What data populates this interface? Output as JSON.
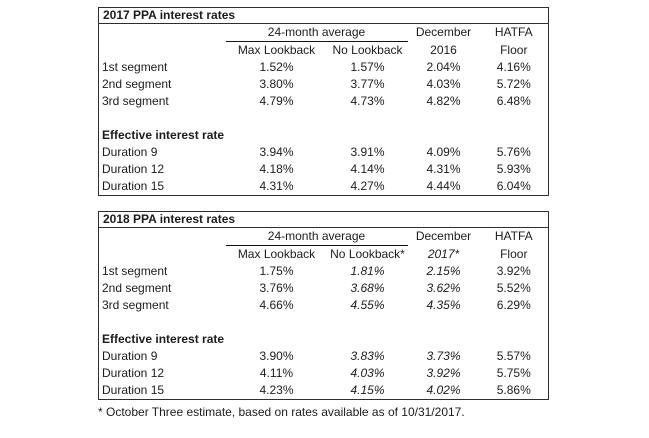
{
  "colors": {
    "background": "#ffffff",
    "text": "#1c1c1c",
    "border": "#2e2e2e"
  },
  "footnote": "* October Three estimate, based on rates available as of 10/31/2017.",
  "tables": [
    {
      "title": "2017 PPA interest rates",
      "group_header": "24-month average",
      "subheaders": [
        "Max Lookback",
        "No Lookback"
      ],
      "period_header_line1": "December",
      "period_header_line2": "2016",
      "floor_header_line1": "HATFA",
      "floor_header_line2": "Floor",
      "italic_value_columns": [],
      "section2_header": "Effective interest rate",
      "rows_segments": [
        {
          "label": "1st segment",
          "values": [
            "1.52%",
            "1.57%",
            "2.04%",
            "4.16%"
          ]
        },
        {
          "label": "2nd segment",
          "values": [
            "3.80%",
            "3.77%",
            "4.03%",
            "5.72%"
          ]
        },
        {
          "label": "3rd segment",
          "values": [
            "4.79%",
            "4.73%",
            "4.82%",
            "6.48%"
          ]
        }
      ],
      "rows_durations": [
        {
          "label": "Duration 9",
          "values": [
            "3.94%",
            "3.91%",
            "4.09%",
            "5.76%"
          ]
        },
        {
          "label": "Duration 12",
          "values": [
            "4.18%",
            "4.14%",
            "4.31%",
            "5.93%"
          ]
        },
        {
          "label": "Duration 15",
          "values": [
            "4.31%",
            "4.27%",
            "4.44%",
            "6.04%"
          ]
        }
      ]
    },
    {
      "title": "2018 PPA interest rates",
      "group_header": "24-month average",
      "subheaders": [
        "Max Lookback",
        "No Lookback*"
      ],
      "period_header_line1": "December",
      "period_header_line2": "2017*",
      "floor_header_line1": "HATFA",
      "floor_header_line2": "Floor",
      "italic_value_columns": [
        1,
        2
      ],
      "section2_header": "Effective interest rate",
      "rows_segments": [
        {
          "label": "1st segment",
          "values": [
            "1.75%",
            "1.81%",
            "2.15%",
            "3.92%"
          ]
        },
        {
          "label": "2nd segment",
          "values": [
            "3.76%",
            "3.68%",
            "3.62%",
            "5.52%"
          ]
        },
        {
          "label": "3rd segment",
          "values": [
            "4.66%",
            "4.55%",
            "4.35%",
            "6.29%"
          ]
        }
      ],
      "rows_durations": [
        {
          "label": "Duration 9",
          "values": [
            "3.90%",
            "3.83%",
            "3.73%",
            "5.57%"
          ]
        },
        {
          "label": "Duration 12",
          "values": [
            "4.11%",
            "4.03%",
            "3.92%",
            "5.75%"
          ]
        },
        {
          "label": "Duration 15",
          "values": [
            "4.23%",
            "4.15%",
            "4.02%",
            "5.86%"
          ]
        }
      ]
    }
  ]
}
